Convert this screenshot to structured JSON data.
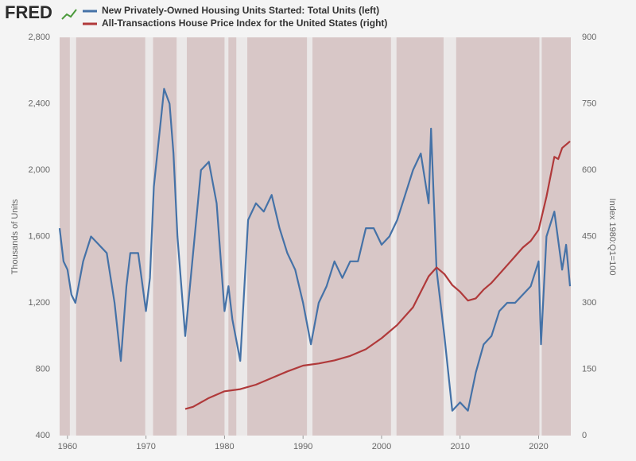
{
  "logo": "FRED",
  "chart_data": {
    "type": "line",
    "y_label": "Thousands of Units",
    "y2_label": "Index 1980:Q1=100",
    "xlim": [
      1959,
      2024.1
    ],
    "xticks": [
      1960,
      1970,
      1980,
      1990,
      2000,
      2010,
      2020
    ],
    "ylim": [
      400,
      2800
    ],
    "yticks": [
      400,
      800,
      {
        "value": 1200,
        "label": "1,200"
      },
      {
        "value": 1600,
        "label": "1,600"
      },
      {
        "value": 2000,
        "label": "2,000"
      },
      {
        "value": 2400,
        "label": "2,400"
      },
      {
        "value": 2800,
        "label": "2,800"
      }
    ],
    "y2lim": [
      0,
      900
    ],
    "y2ticks": [
      0,
      150,
      300,
      450,
      600,
      750,
      900
    ],
    "grid": false,
    "plot_color": "#d8c7c7",
    "recession_color": "#ebe8e8",
    "recessions": [
      [
        1960.3,
        1961.1
      ],
      [
        1969.9,
        1970.9
      ],
      [
        1973.9,
        1975.2
      ],
      [
        1980.0,
        1980.5
      ],
      [
        1981.5,
        1982.9
      ],
      [
        1990.5,
        1991.2
      ],
      [
        2001.2,
        2001.9
      ],
      [
        2007.9,
        2009.5
      ],
      [
        2020.1,
        2020.4
      ]
    ],
    "series": [
      {
        "name": "New Privately-Owned Housing Units Started: Total Units (left)",
        "color": "#4572a7",
        "axis": "y",
        "x": [
          1959,
          1959.5,
          1960,
          1960.5,
          1961,
          1962,
          1963,
          1964,
          1965,
          1966,
          1966.8,
          1967.5,
          1968,
          1969,
          1970,
          1970.5,
          1971,
          1972,
          1972.3,
          1973,
          1973.5,
          1974,
          1975,
          1976,
          1977,
          1978,
          1979,
          1980,
          1980.5,
          1981,
          1982,
          1983,
          1984,
          1985,
          1986,
          1987,
          1988,
          1989,
          1990,
          1991,
          1992,
          1993,
          1994,
          1995,
          1996,
          1997,
          1998,
          1999,
          2000,
          2001,
          2002,
          2003,
          2004,
          2005,
          2006,
          2006.3,
          2007,
          2008,
          2009,
          2010,
          2011,
          2012,
          2013,
          2014,
          2015,
          2016,
          2017,
          2018,
          2019,
          2020,
          2020.3,
          2021,
          2022,
          2023,
          2023.5,
          2024
        ],
        "values": [
          1650,
          1450,
          1400,
          1250,
          1200,
          1450,
          1600,
          1550,
          1500,
          1200,
          850,
          1300,
          1500,
          1500,
          1150,
          1350,
          1900,
          2350,
          2490,
          2400,
          2100,
          1600,
          1000,
          1500,
          2000,
          2050,
          1800,
          1150,
          1300,
          1100,
          850,
          1700,
          1800,
          1750,
          1850,
          1650,
          1500,
          1400,
          1200,
          950,
          1200,
          1300,
          1450,
          1350,
          1450,
          1450,
          1650,
          1650,
          1550,
          1600,
          1700,
          1850,
          2000,
          2100,
          1800,
          2250,
          1400,
          1000,
          550,
          600,
          550,
          780,
          950,
          1000,
          1150,
          1200,
          1200,
          1250,
          1300,
          1450,
          950,
          1600,
          1750,
          1400,
          1550,
          1300
        ]
      },
      {
        "name": "All-Transactions House Price Index for the United States (right)",
        "color": "#b0393a",
        "axis": "y2",
        "x": [
          1975,
          1976,
          1978,
          1980,
          1982,
          1984,
          1986,
          1988,
          1990,
          1992,
          1994,
          1996,
          1998,
          2000,
          2002,
          2004,
          2006,
          2007,
          2008,
          2009,
          2010,
          2011,
          2012,
          2013,
          2014,
          2015,
          2016,
          2017,
          2018,
          2019,
          2020,
          2021,
          2022,
          2022.5,
          2023,
          2024
        ],
        "values": [
          60,
          65,
          85,
          100,
          105,
          115,
          130,
          145,
          158,
          163,
          170,
          180,
          195,
          220,
          250,
          290,
          360,
          380,
          365,
          340,
          325,
          305,
          310,
          330,
          345,
          365,
          385,
          405,
          425,
          440,
          465,
          540,
          630,
          625,
          650,
          665
        ]
      }
    ]
  }
}
